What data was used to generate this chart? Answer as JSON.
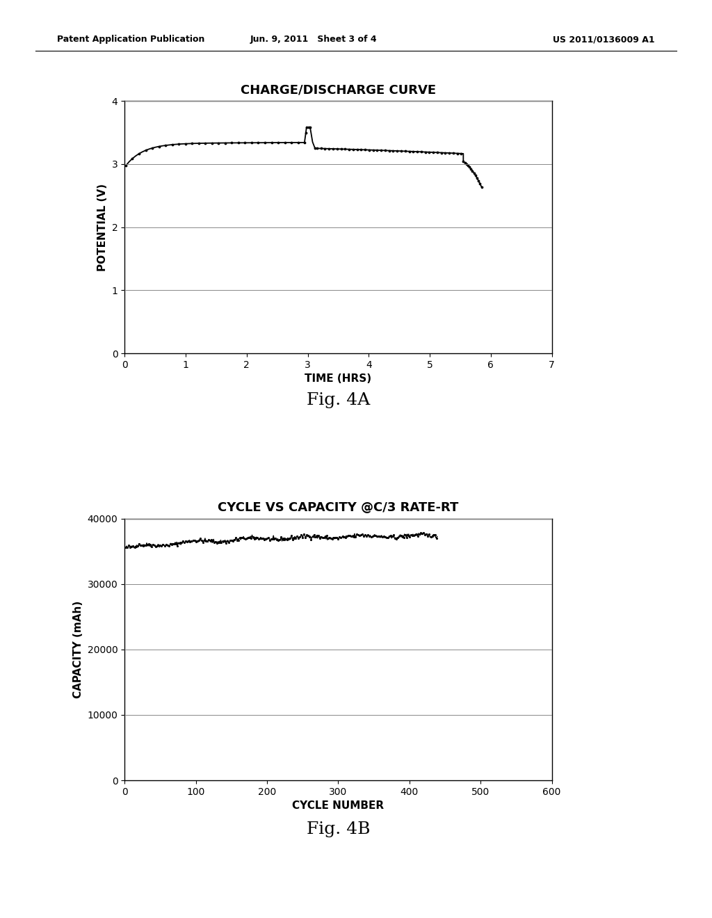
{
  "header_left": "Patent Application Publication",
  "header_center": "Jun. 9, 2011   Sheet 3 of 4",
  "header_right": "US 2011/0136009 A1",
  "fig4a": {
    "title": "CHARGE/DISCHARGE CURVE",
    "xlabel": "TIME (HRS)",
    "ylabel": "POTENTIAL (V)",
    "xlim": [
      0,
      7
    ],
    "ylim": [
      0,
      4
    ],
    "xticks": [
      0,
      1,
      2,
      3,
      4,
      5,
      6,
      7
    ],
    "yticks": [
      0,
      1,
      2,
      3,
      4
    ],
    "fig_label": "Fig. 4A"
  },
  "fig4b": {
    "title": "CYCLE VS CAPACITY @C/3 RATE-RT",
    "xlabel": "CYCLE NUMBER",
    "ylabel": "CAPACITY (mAh)",
    "xlim": [
      0,
      600
    ],
    "ylim": [
      0,
      40000
    ],
    "xticks": [
      0,
      100,
      200,
      300,
      400,
      500,
      600
    ],
    "yticks": [
      0,
      10000,
      20000,
      30000,
      40000
    ],
    "fig_label": "Fig. 4B"
  },
  "background_color": "#ffffff",
  "line_color": "#000000",
  "title_fontsize": 13,
  "label_fontsize": 11,
  "tick_fontsize": 10,
  "fig_label_fontsize": 18,
  "header_fontsize": 9
}
